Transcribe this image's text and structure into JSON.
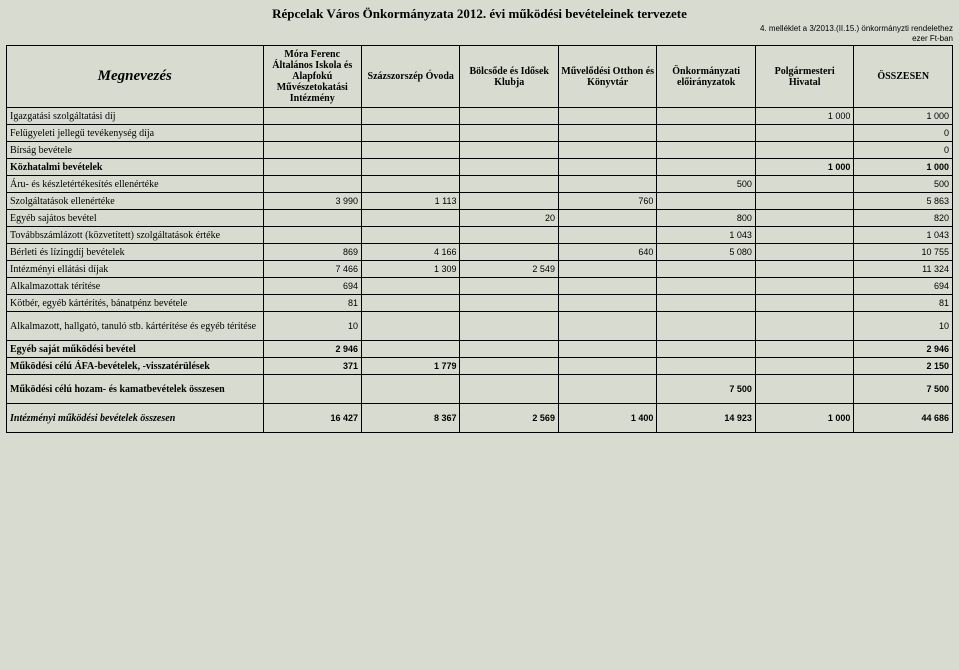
{
  "title": "Répcelak Város Önkormányzata 2012. évi működési bevételeinek tervezete",
  "annex": "4. melléklet a 3/2013.(II.15.) önkormányzti rendelethez",
  "unit": "ezer Ft-ban",
  "columns": {
    "name": "Megnevezés",
    "c1": "Móra Ferenc Általános Iskola és Alapfokú Művészetokatási Intézmény",
    "c2": "Százszorszép Óvoda",
    "c3": "Bölcsőde és Idősek Klubja",
    "c4": "Művelődési Otthon és Könyvtár",
    "c5": "Önkormányzati előirányzatok",
    "c6": "Polgármesteri Hivatal",
    "c7": "ÖSSZESEN"
  },
  "rows": [
    {
      "name": "Igazgatási szolgáltatási díj",
      "c1": "",
      "c2": "",
      "c3": "",
      "c4": "",
      "c5": "",
      "c6": "1 000",
      "c7": "1 000"
    },
    {
      "name": "Felügyeleti jellegű tevékenység díja",
      "c1": "",
      "c2": "",
      "c3": "",
      "c4": "",
      "c5": "",
      "c6": "",
      "c7": "0"
    },
    {
      "name": "Bírság bevétele",
      "c1": "",
      "c2": "",
      "c3": "",
      "c4": "",
      "c5": "",
      "c6": "",
      "c7": "0"
    },
    {
      "name": "Közhatalmi bevételek",
      "c1": "",
      "c2": "",
      "c3": "",
      "c4": "",
      "c5": "",
      "c6": "1 000",
      "c7": "1 000",
      "style": "bold"
    },
    {
      "name": "Áru- és készletértékesítés ellenértéke",
      "c1": "",
      "c2": "",
      "c3": "",
      "c4": "",
      "c5": "500",
      "c6": "",
      "c7": "500"
    },
    {
      "name": "Szolgáltatások ellenértéke",
      "c1": "3 990",
      "c2": "1 113",
      "c3": "",
      "c4": "760",
      "c5": "",
      "c6": "",
      "c7": "5 863"
    },
    {
      "name": "Egyéb sajátos bevétel",
      "c1": "",
      "c2": "",
      "c3": "20",
      "c4": "",
      "c5": "800",
      "c6": "",
      "c7": "820"
    },
    {
      "name": "Továbbszámlázott (közvetített) szolgáltatások értéke",
      "c1": "",
      "c2": "",
      "c3": "",
      "c4": "",
      "c5": "1 043",
      "c6": "",
      "c7": "1 043"
    },
    {
      "name": "Bérleti és lízingdíj bevételek",
      "c1": "869",
      "c2": "4 166",
      "c3": "",
      "c4": "640",
      "c5": "5 080",
      "c6": "",
      "c7": "10 755"
    },
    {
      "name": "Intézményi ellátási díjak",
      "c1": "7 466",
      "c2": "1 309",
      "c3": "2 549",
      "c4": "",
      "c5": "",
      "c6": "",
      "c7": "11 324"
    },
    {
      "name": "Alkalmazottak térítése",
      "c1": "694",
      "c2": "",
      "c3": "",
      "c4": "",
      "c5": "",
      "c6": "",
      "c7": "694"
    },
    {
      "name": "Kötbér, egyéb kártérítés, bánatpénz bevétele",
      "c1": "81",
      "c2": "",
      "c3": "",
      "c4": "",
      "c5": "",
      "c6": "",
      "c7": "81"
    },
    {
      "name": "Alkalmazott, hallgató, tanuló stb. kártérítése és egyéb térítése",
      "c1": "10",
      "c2": "",
      "c3": "",
      "c4": "",
      "c5": "",
      "c6": "",
      "c7": "10",
      "tall": true
    },
    {
      "name": "Egyéb saját működési bevétel",
      "c1": "2 946",
      "c2": "",
      "c3": "",
      "c4": "",
      "c5": "",
      "c6": "",
      "c7": "2 946",
      "style": "bold"
    },
    {
      "name": "Működési célú ÁFA-bevételek, -visszatérülések",
      "c1": "371",
      "c2": "1 779",
      "c3": "",
      "c4": "",
      "c5": "",
      "c6": "",
      "c7": "2 150",
      "style": "bold"
    },
    {
      "name": "Működési célú hozam- és kamatbevételek összesen",
      "c1": "",
      "c2": "",
      "c3": "",
      "c4": "",
      "c5": "7 500",
      "c6": "",
      "c7": "7 500",
      "style": "bold",
      "tall": true
    },
    {
      "name": "Intézményi működési bevételek összesen",
      "c1": "16 427",
      "c2": "8 367",
      "c3": "2 569",
      "c4": "1 400",
      "c5": "14 923",
      "c6": "1 000",
      "c7": "44 686",
      "style": "bold-italic",
      "tall": true
    }
  ]
}
